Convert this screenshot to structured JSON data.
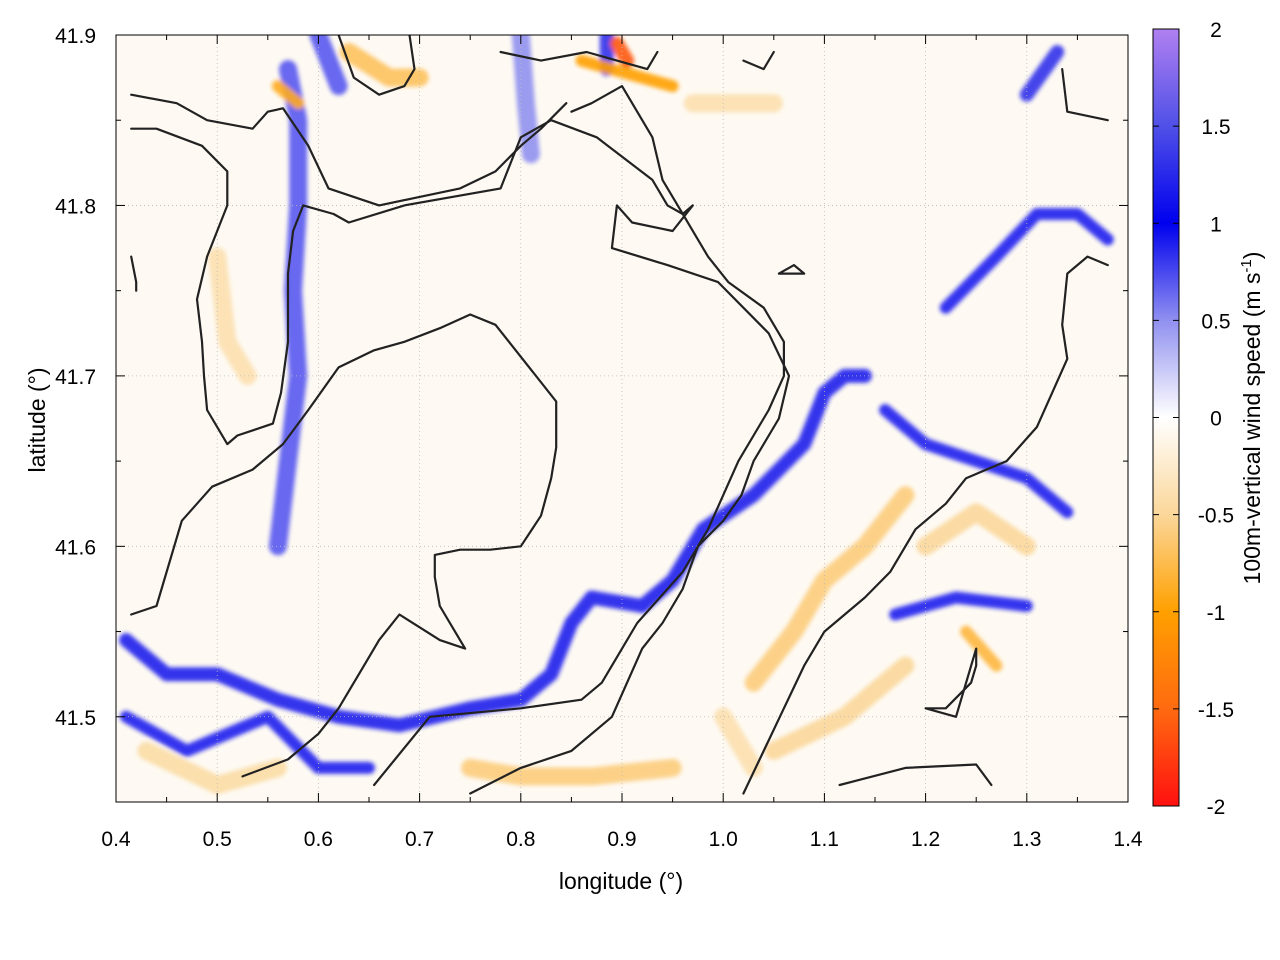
{
  "chart_data": {
    "type": "heatmap",
    "title": "",
    "xlabel": "longitude (°)",
    "ylabel": "latitude (°)",
    "colorbar_label": "100m-vertical wind speed (m s",
    "colorbar_label_sup": "-1",
    "colorbar_label_end": ")",
    "xlim": [
      0.4,
      1.4
    ],
    "ylim": [
      41.45,
      41.9
    ],
    "x_ticks": [
      0.4,
      0.5,
      0.6,
      0.7,
      0.8,
      0.9,
      1.0,
      1.1,
      1.2,
      1.3,
      1.4
    ],
    "x_tick_labels": [
      "0.4",
      "0.5",
      "0.6",
      "0.7",
      "0.8",
      "0.9",
      "1.0",
      "1.1",
      "1.2",
      "1.3",
      "1.4"
    ],
    "y_ticks": [
      41.5,
      41.6,
      41.7,
      41.8,
      41.9
    ],
    "y_tick_labels": [
      "41.5",
      "41.6",
      "41.7",
      "41.8",
      "41.9"
    ],
    "colorbar_range": [
      -2,
      2
    ],
    "colorbar_ticks": [
      2,
      1.5,
      1,
      0.5,
      0,
      -0.5,
      -1,
      -1.5,
      -2
    ],
    "colorbar_tick_labels": [
      "2",
      "1.5",
      "1",
      "0.5",
      "0",
      "-0.5",
      "-1",
      "-1.5",
      "-2"
    ],
    "colormap": [
      {
        "value": 2.0,
        "color": "#b080f0"
      },
      {
        "value": 1.5,
        "color": "#5050e8"
      },
      {
        "value": 1.0,
        "color": "#0000ee"
      },
      {
        "value": 0.5,
        "color": "#9090f0"
      },
      {
        "value": 0.0,
        "color": "#ffffff"
      },
      {
        "value": -0.5,
        "color": "#fbd79a"
      },
      {
        "value": -1.0,
        "color": "#ffa000"
      },
      {
        "value": -1.5,
        "color": "#ff6a10"
      },
      {
        "value": -2.0,
        "color": "#ff1010"
      }
    ],
    "grid": true,
    "contours": [
      [
        [
          0.415,
          41.865
        ],
        [
          0.46,
          41.86
        ],
        [
          0.49,
          41.85
        ],
        [
          0.535,
          41.845
        ],
        [
          0.55,
          41.855
        ],
        [
          0.565,
          41.857
        ],
        [
          0.59,
          41.835
        ],
        [
          0.61,
          41.81
        ],
        [
          0.66,
          41.8
        ],
        [
          0.7,
          41.805
        ],
        [
          0.74,
          41.81
        ],
        [
          0.775,
          41.82
        ],
        [
          0.8,
          41.835
        ],
        [
          0.82,
          41.845
        ],
        [
          0.845,
          41.86
        ]
      ],
      [
        [
          0.415,
          41.845
        ],
        [
          0.44,
          41.845
        ],
        [
          0.485,
          41.835
        ],
        [
          0.51,
          41.82
        ],
        [
          0.51,
          41.8
        ],
        [
          0.49,
          41.77
        ],
        [
          0.48,
          41.745
        ],
        [
          0.485,
          41.72
        ],
        [
          0.487,
          41.7
        ],
        [
          0.49,
          41.68
        ],
        [
          0.51,
          41.66
        ],
        [
          0.52,
          41.665
        ],
        [
          0.535,
          41.668
        ],
        [
          0.555,
          41.672
        ],
        [
          0.563,
          41.69
        ],
        [
          0.57,
          41.72
        ],
        [
          0.57,
          41.76
        ],
        [
          0.575,
          41.785
        ],
        [
          0.585,
          41.8
        ],
        [
          0.615,
          41.795
        ],
        [
          0.63,
          41.79
        ],
        [
          0.685,
          41.8
        ],
        [
          0.78,
          41.81
        ],
        [
          0.8,
          41.84
        ],
        [
          0.83,
          41.85
        ],
        [
          0.875,
          41.84
        ],
        [
          0.93,
          41.815
        ],
        [
          0.945,
          41.8
        ],
        [
          0.96,
          41.795
        ],
        [
          0.97,
          41.8
        ],
        [
          0.95,
          41.785
        ],
        [
          0.91,
          41.79
        ],
        [
          0.895,
          41.8
        ],
        [
          0.89,
          41.775
        ],
        [
          0.945,
          41.765
        ],
        [
          0.995,
          41.755
        ],
        [
          1.045,
          41.725
        ],
        [
          1.065,
          41.7
        ],
        [
          1.055,
          41.675
        ],
        [
          1.03,
          41.65
        ],
        [
          1.018,
          41.63
        ],
        [
          1.0,
          41.615
        ],
        [
          0.975,
          41.6
        ],
        [
          0.96,
          41.575
        ],
        [
          0.94,
          41.555
        ],
        [
          0.92,
          41.54
        ],
        [
          0.89,
          41.5
        ],
        [
          0.85,
          41.48
        ],
        [
          0.8,
          41.47
        ],
        [
          0.75,
          41.455
        ]
      ],
      [
        [
          0.415,
          41.56
        ],
        [
          0.44,
          41.565
        ],
        [
          0.465,
          41.615
        ],
        [
          0.495,
          41.635
        ],
        [
          0.535,
          41.645
        ],
        [
          0.565,
          41.66
        ],
        [
          0.59,
          41.68
        ],
        [
          0.62,
          41.705
        ],
        [
          0.655,
          41.715
        ],
        [
          0.685,
          41.72
        ],
        [
          0.72,
          41.728
        ],
        [
          0.75,
          41.736
        ],
        [
          0.775,
          41.73
        ],
        [
          0.795,
          41.715
        ],
        [
          0.835,
          41.685
        ],
        [
          0.835,
          41.658
        ],
        [
          0.83,
          41.64
        ],
        [
          0.82,
          41.618
        ],
        [
          0.8,
          41.6
        ],
        [
          0.77,
          41.598
        ],
        [
          0.74,
          41.598
        ],
        [
          0.715,
          41.595
        ],
        [
          0.715,
          41.582
        ],
        [
          0.72,
          41.565
        ],
        [
          0.735,
          41.55
        ],
        [
          0.745,
          41.54
        ],
        [
          0.72,
          41.545
        ],
        [
          0.68,
          41.56
        ],
        [
          0.66,
          41.545
        ],
        [
          0.64,
          41.525
        ],
        [
          0.62,
          41.505
        ],
        [
          0.6,
          41.49
        ],
        [
          0.57,
          41.475
        ],
        [
          0.525,
          41.465
        ]
      ],
      [
        [
          0.655,
          41.46
        ],
        [
          0.71,
          41.5
        ],
        [
          0.8,
          41.505
        ],
        [
          0.86,
          41.51
        ],
        [
          0.88,
          41.52
        ],
        [
          0.915,
          41.555
        ],
        [
          0.96,
          41.585
        ],
        [
          0.985,
          41.61
        ],
        [
          1.015,
          41.65
        ],
        [
          1.045,
          41.68
        ],
        [
          1.06,
          41.7
        ],
        [
          1.06,
          41.72
        ],
        [
          1.04,
          41.74
        ],
        [
          1.005,
          41.755
        ],
        [
          0.985,
          41.77
        ],
        [
          0.955,
          41.8
        ],
        [
          0.94,
          41.815
        ],
        [
          0.93,
          41.84
        ],
        [
          0.9,
          41.87
        ],
        [
          0.87,
          41.86
        ],
        [
          0.85,
          41.855
        ]
      ],
      [
        [
          1.02,
          41.455
        ],
        [
          1.04,
          41.48
        ],
        [
          1.06,
          41.505
        ],
        [
          1.08,
          41.53
        ],
        [
          1.1,
          41.55
        ],
        [
          1.14,
          41.57
        ],
        [
          1.165,
          41.585
        ],
        [
          1.19,
          41.61
        ],
        [
          1.22,
          41.625
        ],
        [
          1.24,
          41.64
        ],
        [
          1.26,
          41.645
        ],
        [
          1.28,
          41.65
        ],
        [
          1.31,
          41.67
        ],
        [
          1.325,
          41.69
        ],
        [
          1.34,
          41.71
        ],
        [
          1.335,
          41.73
        ],
        [
          1.34,
          41.76
        ],
        [
          1.36,
          41.77
        ],
        [
          1.38,
          41.765
        ]
      ],
      [
        [
          1.115,
          41.46
        ],
        [
          1.18,
          41.47
        ],
        [
          1.25,
          41.472
        ],
        [
          1.265,
          41.46
        ]
      ],
      [
        [
          1.2,
          41.505
        ],
        [
          1.22,
          41.505
        ],
        [
          1.245,
          41.52
        ],
        [
          1.25,
          41.53
        ],
        [
          1.25,
          41.54
        ],
        [
          1.23,
          41.5
        ],
        [
          1.2,
          41.505
        ]
      ],
      [
        [
          1.055,
          41.76
        ],
        [
          1.08,
          41.76
        ],
        [
          1.07,
          41.765
        ],
        [
          1.055,
          41.76
        ]
      ],
      [
        [
          0.62,
          41.9
        ],
        [
          0.635,
          41.875
        ],
        [
          0.66,
          41.865
        ],
        [
          0.685,
          41.87
        ],
        [
          0.695,
          41.88
        ],
        [
          0.69,
          41.9
        ]
      ],
      [
        [
          0.78,
          41.89
        ],
        [
          0.82,
          41.885
        ],
        [
          0.865,
          41.89
        ],
        [
          0.895,
          41.885
        ],
        [
          0.925,
          41.88
        ],
        [
          0.935,
          41.89
        ]
      ],
      [
        [
          1.02,
          41.885
        ],
        [
          1.04,
          41.88
        ],
        [
          1.05,
          41.89
        ]
      ],
      [
        [
          1.335,
          41.88
        ],
        [
          1.34,
          41.855
        ],
        [
          1.38,
          41.85
        ]
      ],
      [
        [
          0.415,
          41.77
        ],
        [
          0.42,
          41.755
        ],
        [
          0.42,
          41.75
        ]
      ]
    ],
    "bands": [
      {
        "value": 1.2,
        "points": [
          [
            0.41,
            41.545
          ],
          [
            0.45,
            41.525
          ],
          [
            0.5,
            41.525
          ],
          [
            0.56,
            41.51
          ],
          [
            0.62,
            41.5
          ],
          [
            0.68,
            41.495
          ],
          [
            0.75,
            41.505
          ],
          [
            0.8,
            41.51
          ],
          [
            0.83,
            41.525
          ],
          [
            0.85,
            41.555
          ],
          [
            0.87,
            41.57
          ],
          [
            0.92,
            41.565
          ],
          [
            0.95,
            41.58
          ],
          [
            0.98,
            41.61
          ],
          [
            1.03,
            41.63
          ],
          [
            1.08,
            41.66
          ],
          [
            1.1,
            41.69
          ],
          [
            1.12,
            41.7
          ],
          [
            1.14,
            41.7
          ]
        ]
      },
      {
        "value": 0.9,
        "points": [
          [
            0.41,
            41.5
          ],
          [
            0.47,
            41.48
          ],
          [
            0.55,
            41.5
          ],
          [
            0.6,
            41.47
          ],
          [
            0.65,
            41.47
          ]
        ]
      },
      {
        "value": 0.9,
        "points": [
          [
            1.16,
            41.68
          ],
          [
            1.2,
            41.66
          ],
          [
            1.25,
            41.65
          ],
          [
            1.3,
            41.64
          ],
          [
            1.34,
            41.62
          ]
        ]
      },
      {
        "value": 0.9,
        "points": [
          [
            1.17,
            41.56
          ],
          [
            1.23,
            41.57
          ],
          [
            1.3,
            41.565
          ]
        ]
      },
      {
        "value": 0.9,
        "points": [
          [
            1.22,
            41.74
          ],
          [
            1.27,
            41.77
          ],
          [
            1.31,
            41.795
          ],
          [
            1.35,
            41.795
          ],
          [
            1.38,
            41.78
          ]
        ]
      },
      {
        "value": 0.7,
        "points": [
          [
            0.57,
            41.88
          ],
          [
            0.58,
            41.85
          ],
          [
            0.58,
            41.8
          ],
          [
            0.575,
            41.75
          ],
          [
            0.58,
            41.7
          ],
          [
            0.57,
            41.65
          ],
          [
            0.56,
            41.6
          ]
        ]
      },
      {
        "value": 0.7,
        "points": [
          [
            0.6,
            41.9
          ],
          [
            0.62,
            41.87
          ]
        ]
      },
      {
        "value": 1.3,
        "points": [
          [
            0.885,
            41.9
          ],
          [
            0.885,
            41.88
          ]
        ]
      },
      {
        "value": 1.3,
        "points": [
          [
            1.3,
            41.865
          ],
          [
            1.33,
            41.89
          ]
        ]
      },
      {
        "value": 0.5,
        "points": [
          [
            0.8,
            41.9
          ],
          [
            0.805,
            41.86
          ],
          [
            0.81,
            41.83
          ]
        ]
      },
      {
        "value": -0.9,
        "points": [
          [
            0.56,
            41.87
          ],
          [
            0.58,
            41.86
          ]
        ]
      },
      {
        "value": -0.7,
        "points": [
          [
            0.63,
            41.89
          ],
          [
            0.67,
            41.875
          ],
          [
            0.7,
            41.875
          ]
        ]
      },
      {
        "value": -1.0,
        "points": [
          [
            0.86,
            41.885
          ],
          [
            0.95,
            41.87
          ]
        ]
      },
      {
        "value": -1.6,
        "points": [
          [
            0.895,
            41.895
          ],
          [
            0.905,
            41.885
          ]
        ]
      },
      {
        "value": -0.6,
        "points": [
          [
            1.03,
            41.52
          ],
          [
            1.07,
            41.55
          ],
          [
            1.1,
            41.58
          ],
          [
            1.14,
            41.6
          ],
          [
            1.18,
            41.63
          ]
        ]
      },
      {
        "value": -0.6,
        "points": [
          [
            0.75,
            41.47
          ],
          [
            0.8,
            41.465
          ],
          [
            0.87,
            41.465
          ],
          [
            0.95,
            41.47
          ]
        ]
      },
      {
        "value": -0.5,
        "points": [
          [
            1.05,
            41.48
          ],
          [
            1.12,
            41.5
          ],
          [
            1.18,
            41.53
          ]
        ]
      },
      {
        "value": -0.8,
        "points": [
          [
            1.24,
            41.55
          ],
          [
            1.27,
            41.53
          ]
        ]
      },
      {
        "value": -0.5,
        "points": [
          [
            1.2,
            41.6
          ],
          [
            1.25,
            41.62
          ],
          [
            1.3,
            41.6
          ]
        ]
      },
      {
        "value": -0.45,
        "points": [
          [
            0.43,
            41.48
          ],
          [
            0.5,
            41.46
          ],
          [
            0.56,
            41.47
          ]
        ]
      },
      {
        "value": -0.4,
        "points": [
          [
            1.0,
            41.5
          ],
          [
            1.03,
            41.47
          ]
        ]
      },
      {
        "value": -0.4,
        "points": [
          [
            0.5,
            41.77
          ],
          [
            0.51,
            41.72
          ],
          [
            0.53,
            41.7
          ]
        ]
      },
      {
        "value": -0.4,
        "points": [
          [
            0.97,
            41.86
          ],
          [
            1.05,
            41.86
          ]
        ]
      }
    ]
  }
}
